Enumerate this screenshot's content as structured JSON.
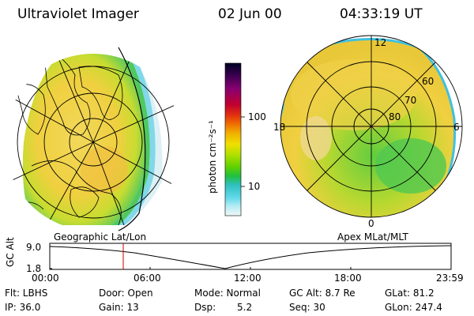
{
  "header": {
    "title": "Ultraviolet Imager",
    "date": "02 Jun 00",
    "time": "04:33:19 UT"
  },
  "colorbar": {
    "unit_label": "photon cm⁻²s⁻¹",
    "ticks": [
      "100",
      "10"
    ],
    "colors": [
      "#000020",
      "#3a0050",
      "#8a0070",
      "#c00030",
      "#e03010",
      "#f07000",
      "#f0b000",
      "#f0e000",
      "#b0e000",
      "#60d000",
      "#20c040",
      "#30c0c0",
      "#60d8e8",
      "#b8ecf4",
      "#f0f8f8"
    ]
  },
  "left_map": {
    "label": "Geographic Lat/Lon"
  },
  "right_map": {
    "label": "Apex MLat/MLT",
    "lat_labels": [
      "60",
      "70",
      "80"
    ],
    "mlt_labels": [
      "12",
      "18",
      "6",
      "0"
    ]
  },
  "altitude_plot": {
    "ylabel": "GC Alt",
    "yticks": [
      "9.0",
      "1.8"
    ],
    "xticks": [
      "00:00",
      "06:00",
      "12:00",
      "18:00",
      "23:59"
    ],
    "marker_color": "#cc0000"
  },
  "info": {
    "filter": "Flt: LBHS",
    "door": "Door: Open",
    "mode": "Mode: Normal",
    "gc_alt": "GC Alt: 8.7 Re",
    "glat": "GLat: 81.2",
    "ip": "IP: 36.0",
    "gain": "Gain: 13",
    "dsp": "Dsp:",
    "dsp_value": "5.2",
    "seq": "Seq: 30",
    "glon": "GLon: 247.4"
  }
}
